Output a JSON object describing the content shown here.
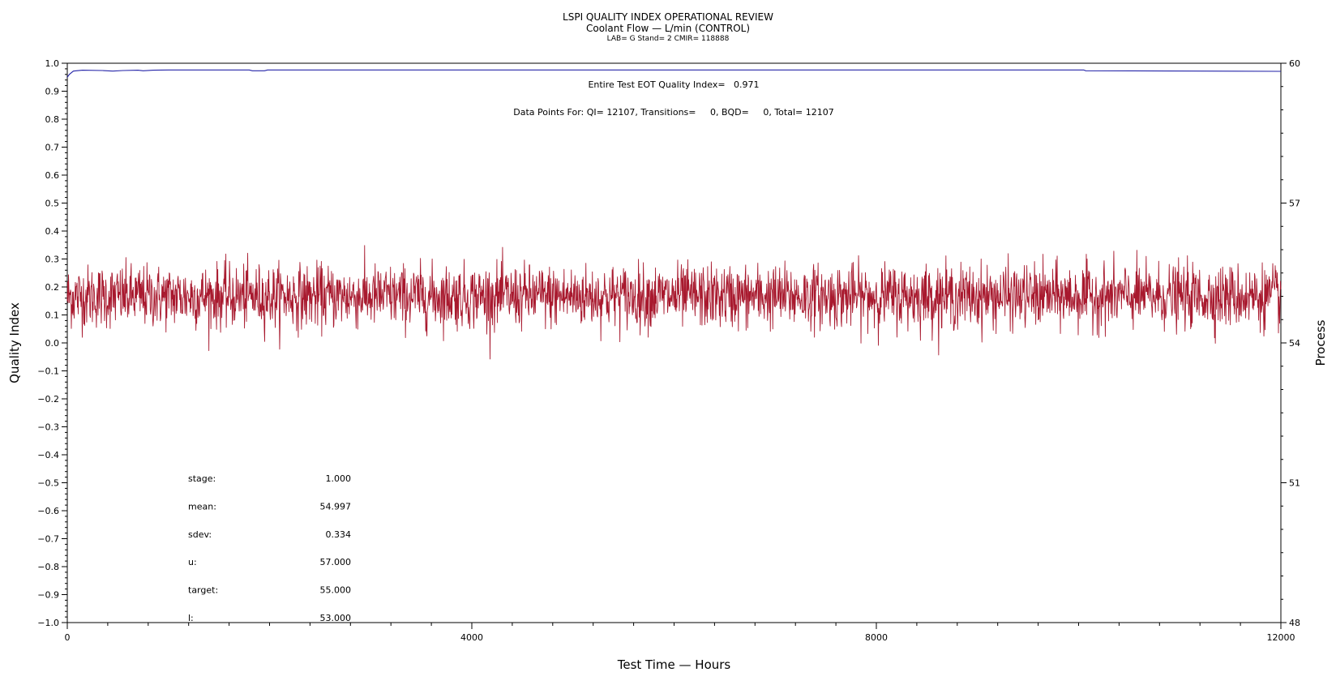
{
  "chart_data": {
    "type": "line",
    "title": "LSPI QUALITY INDEX OPERATIONAL REVIEW",
    "subtitle": "Coolant Flow — L/min (CONTROL)",
    "subtitle2": "LAB= G Stand= 2 CMIR= 118888",
    "xlabel": "Test Time — Hours",
    "ylabel": "Quality Index",
    "y2label": "Process",
    "xlim": [
      0,
      12000
    ],
    "ylim": [
      -1.0,
      1.0
    ],
    "y2lim": [
      48,
      60
    ],
    "xticks": [
      0,
      4000,
      8000,
      12000
    ],
    "yticks": [
      "1.0",
      "0.9",
      "0.8",
      "0.7",
      "0.6",
      "0.5",
      "0.4",
      "0.3",
      "0.2",
      "0.1",
      "0.0",
      "−0.1",
      "−0.2",
      "−0.3",
      "−0.4",
      "−0.5",
      "−0.6",
      "−0.7",
      "−0.8",
      "−0.9",
      "−1.0"
    ],
    "y2ticks": [
      60,
      57,
      54,
      51,
      48
    ],
    "annotations": {
      "eot": "Entire Test EOT Quality Index=   0.971",
      "points": "Data Points For: QI= 12107, Transitions=     0, BQD=     0, Total= 12107"
    },
    "stats": [
      {
        "label": "stage:",
        "value": "1.000"
      },
      {
        "label": "mean:",
        "value": "54.997"
      },
      {
        "label": "sdev:",
        "value": "0.334"
      },
      {
        "label": "u:",
        "value": "57.000"
      },
      {
        "label": "target:",
        "value": "55.000"
      },
      {
        "label": "l:",
        "value": "53.000"
      }
    ],
    "series": [
      {
        "axis": "left",
        "color": "#2323a8",
        "values": [
          [
            0,
            0.95
          ],
          [
            20,
            0.96
          ],
          [
            60,
            0.972
          ],
          [
            150,
            0.975
          ],
          [
            350,
            0.974
          ],
          [
            450,
            0.972
          ],
          [
            550,
            0.974
          ],
          [
            700,
            0.975
          ],
          [
            750,
            0.973
          ],
          [
            850,
            0.975
          ],
          [
            1000,
            0.976
          ],
          [
            1800,
            0.976
          ],
          [
            1830,
            0.973
          ],
          [
            1950,
            0.973
          ],
          [
            1980,
            0.976
          ],
          [
            3000,
            0.976
          ],
          [
            5000,
            0.976
          ],
          [
            7000,
            0.976
          ],
          [
            9000,
            0.976
          ],
          [
            10050,
            0.976
          ],
          [
            10070,
            0.973
          ],
          [
            12000,
            0.971
          ]
        ]
      },
      {
        "axis": "right",
        "color": "#a8192e",
        "mean": 54.997,
        "sdev": 0.334,
        "range": [
          53.55,
          56.1
        ],
        "n_points": 12107
      }
    ]
  }
}
